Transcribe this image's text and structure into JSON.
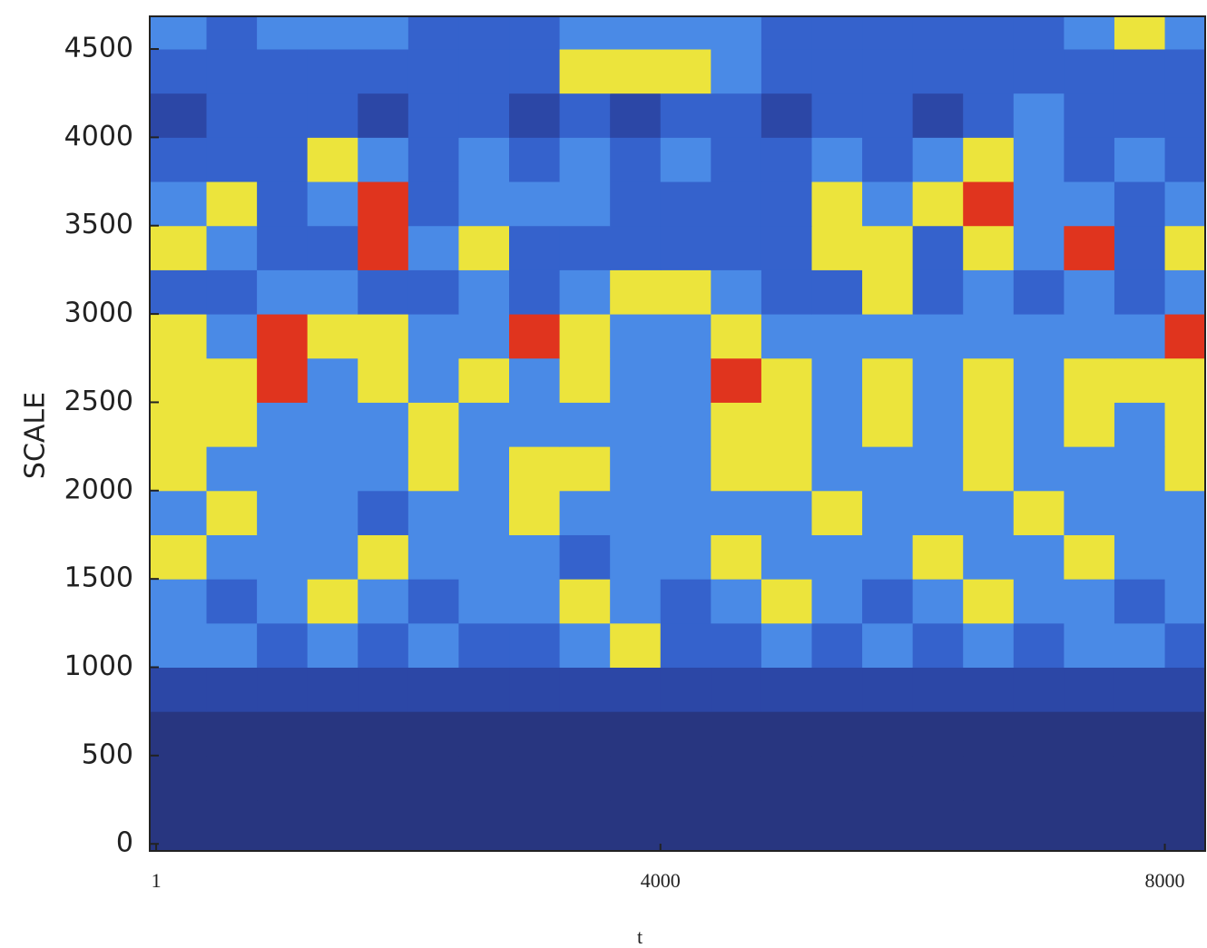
{
  "chart_data": {
    "type": "heatmap",
    "xlabel": "t",
    "ylabel": "SCALE",
    "xlim": [
      -50,
      8320
    ],
    "ylim": [
      -40,
      4685
    ],
    "xticks": [
      1,
      4000,
      8000
    ],
    "yticks": [
      0,
      500,
      1000,
      1500,
      2000,
      2500,
      3000,
      3500,
      4000,
      4500
    ],
    "x_edges": [
      -50,
      400,
      800,
      1200,
      1600,
      2000,
      2400,
      2800,
      3200,
      3600,
      4000,
      4400,
      4800,
      5200,
      5600,
      6000,
      6400,
      6800,
      7200,
      7600,
      8000,
      8320
    ],
    "y_edges": [
      -40,
      250,
      500,
      750,
      1000,
      1250,
      1500,
      1750,
      2000,
      2250,
      2500,
      2750,
      3000,
      3250,
      3500,
      3750,
      4000,
      4250,
      4500,
      4685
    ],
    "colorscale": [
      "#283680",
      "#2c47a6",
      "#3562cc",
      "#4a8ae6",
      "#ece43c",
      "#e0341e"
    ],
    "z": [
      [
        0,
        0,
        0,
        0,
        0,
        0,
        0,
        0,
        0,
        0,
        0,
        0,
        0,
        0,
        0,
        0,
        0,
        0,
        0,
        0,
        0
      ],
      [
        0,
        0,
        0,
        0,
        0,
        0,
        0,
        0,
        0,
        0,
        0,
        0,
        0,
        0,
        0,
        0,
        0,
        0,
        0,
        0,
        0
      ],
      [
        0,
        0,
        0,
        0,
        0,
        0,
        0,
        0,
        0,
        0,
        0,
        0,
        0,
        0,
        0,
        0,
        0,
        0,
        0,
        0,
        0
      ],
      [
        1,
        1,
        1,
        1,
        1,
        1,
        1,
        1,
        1,
        1,
        1,
        1,
        1,
        1,
        1,
        1,
        1,
        1,
        1,
        1,
        1
      ],
      [
        3,
        3,
        2,
        3,
        2,
        3,
        2,
        2,
        3,
        4,
        2,
        2,
        3,
        2,
        3,
        2,
        3,
        2,
        3,
        3,
        2
      ],
      [
        3,
        2,
        3,
        4,
        3,
        2,
        3,
        3,
        4,
        3,
        2,
        3,
        4,
        3,
        2,
        3,
        4,
        3,
        3,
        2,
        3
      ],
      [
        4,
        3,
        3,
        3,
        4,
        3,
        3,
        3,
        2,
        3,
        3,
        4,
        3,
        3,
        3,
        4,
        3,
        3,
        4,
        3,
        3
      ],
      [
        3,
        4,
        3,
        3,
        2,
        3,
        3,
        4,
        3,
        3,
        3,
        3,
        3,
        4,
        3,
        3,
        3,
        4,
        3,
        3,
        3
      ],
      [
        4,
        3,
        3,
        3,
        3,
        4,
        3,
        4,
        4,
        3,
        3,
        4,
        4,
        3,
        3,
        3,
        4,
        3,
        3,
        3,
        4
      ],
      [
        4,
        4,
        3,
        3,
        3,
        4,
        3,
        3,
        3,
        3,
        3,
        4,
        4,
        3,
        4,
        3,
        4,
        3,
        4,
        3,
        4
      ],
      [
        4,
        4,
        5,
        3,
        4,
        3,
        4,
        3,
        4,
        3,
        3,
        5,
        4,
        3,
        4,
        3,
        4,
        3,
        4,
        4,
        4
      ],
      [
        4,
        3,
        5,
        4,
        4,
        3,
        3,
        5,
        4,
        3,
        3,
        4,
        3,
        3,
        3,
        3,
        3,
        3,
        3,
        3,
        5
      ],
      [
        2,
        2,
        3,
        3,
        2,
        2,
        3,
        2,
        3,
        4,
        4,
        3,
        2,
        2,
        4,
        2,
        3,
        2,
        3,
        2,
        3
      ],
      [
        4,
        3,
        2,
        2,
        5,
        3,
        4,
        2,
        2,
        2,
        2,
        2,
        2,
        4,
        4,
        2,
        4,
        3,
        5,
        2,
        4
      ],
      [
        3,
        4,
        2,
        3,
        5,
        2,
        3,
        3,
        3,
        2,
        2,
        2,
        2,
        4,
        3,
        4,
        5,
        3,
        3,
        2,
        3
      ],
      [
        2,
        2,
        2,
        4,
        3,
        2,
        3,
        2,
        3,
        2,
        3,
        2,
        2,
        3,
        2,
        3,
        4,
        3,
        2,
        3,
        2
      ],
      [
        1,
        2,
        2,
        2,
        1,
        2,
        2,
        1,
        2,
        1,
        2,
        2,
        1,
        2,
        2,
        1,
        2,
        3,
        2,
        2,
        2
      ],
      [
        2,
        2,
        2,
        2,
        2,
        2,
        2,
        2,
        4,
        4,
        4,
        3,
        2,
        2,
        2,
        2,
        2,
        2,
        2,
        2,
        2
      ],
      [
        3,
        2,
        3,
        3,
        3,
        2,
        2,
        2,
        3,
        3,
        3,
        3,
        2,
        2,
        2,
        2,
        2,
        2,
        3,
        4,
        3
      ]
    ]
  }
}
